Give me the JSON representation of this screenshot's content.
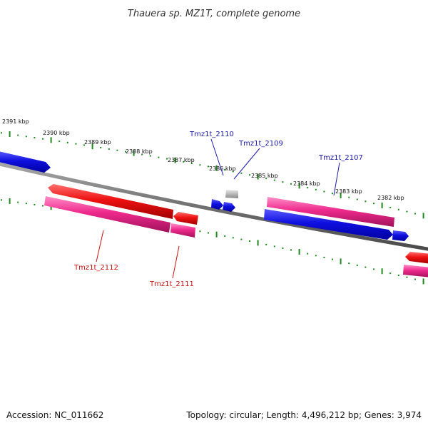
{
  "title": "Thauera sp. MZ1T, complete genome",
  "footer": {
    "accession": "Accession: NC_011662",
    "topology": "Topology: circular; Length: 4,496,212 bp; Genes: 3,974"
  },
  "kbp_labels": [
    "2391 kbp",
    "2390 kbp",
    "2389 kbp",
    "2388 kbp",
    "2387 kbp",
    "2386 kbp",
    "2385 kbp",
    "2384 kbp",
    "2383 kbp",
    "2382 kbp"
  ],
  "gene_labels": {
    "tmz1t_2110": "Tmz1t_2110",
    "tmz1t_2109": "Tmz1t_2109",
    "tmz1t_2107": "Tmz1t_2107",
    "tmz1t_2112": "Tmz1t_2112",
    "tmz1t_2111": "Tmz1t_2111"
  },
  "colors": {
    "forward_gene": "#1010e0",
    "reverse_gene": "#ee1111",
    "cds_pink": "#ee2a8c",
    "pseudo_gray": "#b8b8b8",
    "backbone": "#7a7a7a",
    "ticks": "#1f8a1f",
    "label_forward": "#1a1aaa",
    "label_reverse": "#cc1111"
  }
}
